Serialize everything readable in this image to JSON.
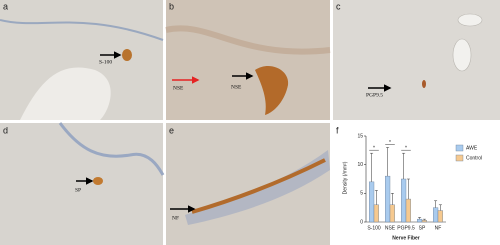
{
  "panels": [
    {
      "label": "a",
      "annotations": [
        "S-100"
      ]
    },
    {
      "label": "b",
      "annotations": [
        "NSE",
        "NSE"
      ]
    },
    {
      "label": "c",
      "annotations": [
        "PGP9.5"
      ]
    },
    {
      "label": "d",
      "annotations": [
        "SP"
      ]
    },
    {
      "label": "e",
      "annotations": [
        "NF"
      ]
    },
    {
      "label": "f",
      "annotations": []
    }
  ],
  "chart_data": {
    "type": "bar",
    "x_label": "Nerve Fiber",
    "y_label": "Density (/mm²)",
    "categories": [
      "S-100",
      "NSE",
      "PGP9.5",
      "SP",
      "NF"
    ],
    "series": [
      {
        "name": "AWE",
        "color": "#a9cbee",
        "values": [
          7,
          8,
          7.5,
          0.5,
          2.5
        ],
        "errors": [
          5,
          5,
          4.5,
          0.3,
          1.2
        ]
      },
      {
        "name": "Control",
        "color": "#f6c98f",
        "values": [
          3,
          3,
          4,
          0.3,
          2
        ],
        "errors": [
          2.5,
          2,
          3.5,
          0.2,
          1
        ]
      }
    ],
    "significance": [
      "*",
      "*",
      "*",
      null,
      null
    ],
    "ylim": [
      0,
      15
    ],
    "yticks": [
      0,
      5,
      10,
      15
    ],
    "legend": "right"
  }
}
